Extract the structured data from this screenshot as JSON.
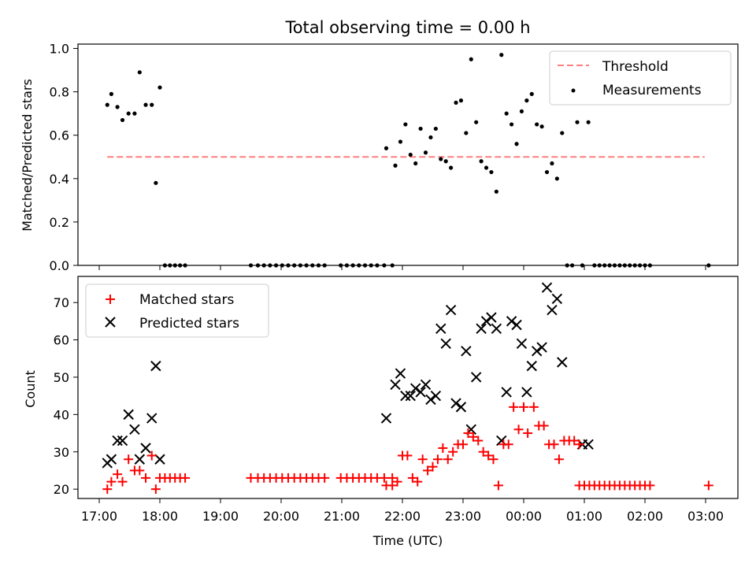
{
  "figure": {
    "title": "Total observing time = 0.00 h"
  },
  "colors": {
    "threshold": "#ff7f7f",
    "measurements": "#000000",
    "matched": "#ff0000",
    "predicted": "#000000"
  },
  "chart_data": [
    {
      "type": "scatter",
      "title": "Total observing time = 0.00 h",
      "xlabel": "",
      "ylabel": "Matched/Predicted stars",
      "ylim": [
        0,
        1.02
      ],
      "yticks": [
        "0.0",
        "0.2",
        "0.4",
        "0.6",
        "0.8",
        "1.0"
      ],
      "grid": false,
      "legend": {
        "location": "top-right",
        "entries": [
          {
            "label": "Threshold",
            "marker": "dashed-line"
          },
          {
            "label": "Measurements",
            "marker": "dot"
          }
        ]
      },
      "threshold": {
        "y": 0.5,
        "x_start": "17:08",
        "x_end": "02:59"
      },
      "series": [
        {
          "name": "Measurements",
          "points": [
            [
              "17:08",
              0.74
            ],
            [
              "17:12",
              0.79
            ],
            [
              "17:18",
              0.73
            ],
            [
              "17:23",
              0.67
            ],
            [
              "17:29",
              0.7
            ],
            [
              "17:35",
              0.7
            ],
            [
              "17:40",
              0.89
            ],
            [
              "17:46",
              0.74
            ],
            [
              "17:52",
              0.74
            ],
            [
              "17:56",
              0.38
            ],
            [
              "18:00",
              0.82
            ],
            [
              "18:05",
              0
            ],
            [
              "18:10",
              0
            ],
            [
              "18:15",
              0
            ],
            [
              "18:20",
              0
            ],
            [
              "18:25",
              0
            ],
            [
              "19:30",
              0
            ],
            [
              "19:37",
              0
            ],
            [
              "19:43",
              0
            ],
            [
              "19:49",
              0
            ],
            [
              "19:55",
              0
            ],
            [
              "20:01",
              0
            ],
            [
              "20:07",
              0
            ],
            [
              "20:13",
              0
            ],
            [
              "20:19",
              0
            ],
            [
              "20:25",
              0
            ],
            [
              "20:31",
              0
            ],
            [
              "20:37",
              0
            ],
            [
              "20:43",
              0
            ],
            [
              "20:59",
              0
            ],
            [
              "21:05",
              0
            ],
            [
              "21:11",
              0
            ],
            [
              "21:17",
              0
            ],
            [
              "21:23",
              0
            ],
            [
              "21:29",
              0
            ],
            [
              "21:35",
              0
            ],
            [
              "21:42",
              0
            ],
            [
              "21:50",
              0
            ],
            [
              "21:44",
              0.54
            ],
            [
              "21:53",
              0.46
            ],
            [
              "21:58",
              0.57
            ],
            [
              "22:03",
              0.65
            ],
            [
              "22:08",
              0.51
            ],
            [
              "22:13",
              0.47
            ],
            [
              "22:18",
              0.63
            ],
            [
              "22:23",
              0.52
            ],
            [
              "22:28",
              0.59
            ],
            [
              "22:33",
              0.63
            ],
            [
              "22:38",
              0.49
            ],
            [
              "22:43",
              0.48
            ],
            [
              "22:48",
              0.45
            ],
            [
              "22:53",
              0.75
            ],
            [
              "22:58",
              0.76
            ],
            [
              "23:03",
              0.61
            ],
            [
              "23:08",
              0.95
            ],
            [
              "23:13",
              0.66
            ],
            [
              "23:18",
              0.48
            ],
            [
              "23:23",
              0.45
            ],
            [
              "23:28",
              0.43
            ],
            [
              "23:33",
              0.34
            ],
            [
              "23:38",
              0.97
            ],
            [
              "23:43",
              0.7
            ],
            [
              "23:48",
              0.65
            ],
            [
              "23:53",
              0.56
            ],
            [
              "23:58",
              0.71
            ],
            [
              "00:03",
              0.76
            ],
            [
              "00:08",
              0.79
            ],
            [
              "00:13",
              0.65
            ],
            [
              "00:18",
              0.64
            ],
            [
              "00:23",
              0.43
            ],
            [
              "00:28",
              0.47
            ],
            [
              "00:33",
              0.4
            ],
            [
              "00:38",
              0.61
            ],
            [
              "00:43",
              0
            ],
            [
              "00:48",
              0
            ],
            [
              "00:53",
              0.66
            ],
            [
              "00:58",
              0
            ],
            [
              "01:04",
              0.66
            ],
            [
              "01:10",
              0
            ],
            [
              "01:15",
              0
            ],
            [
              "01:20",
              0
            ],
            [
              "01:25",
              0
            ],
            [
              "01:30",
              0
            ],
            [
              "01:35",
              0
            ],
            [
              "01:40",
              0
            ],
            [
              "01:45",
              0
            ],
            [
              "01:50",
              0
            ],
            [
              "01:55",
              0
            ],
            [
              "02:00",
              0
            ],
            [
              "02:05",
              0
            ],
            [
              "03:03",
              0
            ]
          ]
        }
      ]
    },
    {
      "type": "scatter",
      "xlabel": "Time (UTC)",
      "ylabel": "Count",
      "ylim": [
        17.5,
        77
      ],
      "yticks": [
        "20",
        "30",
        "40",
        "50",
        "60",
        "70"
      ],
      "xticks": [
        "17:00",
        "18:00",
        "19:00",
        "20:00",
        "21:00",
        "22:00",
        "23:00",
        "00:00",
        "01:00",
        "02:00",
        "03:00"
      ],
      "grid": false,
      "legend": {
        "location": "top-left",
        "entries": [
          {
            "label": "Matched stars",
            "marker": "plus"
          },
          {
            "label": "Predicted stars",
            "marker": "x"
          }
        ]
      },
      "series": [
        {
          "name": "Matched stars",
          "points": [
            [
              "17:08",
              20
            ],
            [
              "17:12",
              22
            ],
            [
              "17:18",
              24
            ],
            [
              "17:23",
              22
            ],
            [
              "17:29",
              28
            ],
            [
              "17:35",
              25
            ],
            [
              "17:40",
              25
            ],
            [
              "17:46",
              23
            ],
            [
              "17:52",
              29
            ],
            [
              "17:56",
              20
            ],
            [
              "18:00",
              23
            ],
            [
              "18:05",
              23
            ],
            [
              "18:10",
              23
            ],
            [
              "18:15",
              23
            ],
            [
              "18:20",
              23
            ],
            [
              "18:25",
              23
            ],
            [
              "19:30",
              23
            ],
            [
              "19:37",
              23
            ],
            [
              "19:43",
              23
            ],
            [
              "19:49",
              23
            ],
            [
              "19:55",
              23
            ],
            [
              "20:01",
              23
            ],
            [
              "20:07",
              23
            ],
            [
              "20:13",
              23
            ],
            [
              "20:19",
              23
            ],
            [
              "20:25",
              23
            ],
            [
              "20:31",
              23
            ],
            [
              "20:37",
              23
            ],
            [
              "20:43",
              23
            ],
            [
              "20:59",
              23
            ],
            [
              "21:05",
              23
            ],
            [
              "21:11",
              23
            ],
            [
              "21:17",
              23
            ],
            [
              "21:23",
              23
            ],
            [
              "21:29",
              23
            ],
            [
              "21:35",
              23
            ],
            [
              "21:42",
              23
            ],
            [
              "21:50",
              23
            ],
            [
              "21:44",
              21
            ],
            [
              "21:50",
              21
            ],
            [
              "21:55",
              22
            ],
            [
              "22:00",
              29
            ],
            [
              "22:05",
              29
            ],
            [
              "22:10",
              23
            ],
            [
              "22:15",
              22
            ],
            [
              "22:20",
              28
            ],
            [
              "22:25",
              25
            ],
            [
              "22:30",
              26
            ],
            [
              "22:35",
              28
            ],
            [
              "22:40",
              31
            ],
            [
              "22:45",
              28
            ],
            [
              "22:50",
              30
            ],
            [
              "22:55",
              32
            ],
            [
              "23:00",
              32
            ],
            [
              "23:05",
              35
            ],
            [
              "23:10",
              34
            ],
            [
              "23:15",
              33
            ],
            [
              "23:20",
              30
            ],
            [
              "23:25",
              29
            ],
            [
              "23:30",
              28
            ],
            [
              "23:35",
              21
            ],
            [
              "23:40",
              32
            ],
            [
              "23:45",
              32
            ],
            [
              "23:50",
              42
            ],
            [
              "23:55",
              36
            ],
            [
              "00:00",
              42
            ],
            [
              "00:04",
              35
            ],
            [
              "00:10",
              42
            ],
            [
              "00:15",
              37
            ],
            [
              "00:20",
              37
            ],
            [
              "00:25",
              32
            ],
            [
              "00:30",
              32
            ],
            [
              "00:35",
              28
            ],
            [
              "00:40",
              33
            ],
            [
              "00:45",
              33
            ],
            [
              "00:50",
              33
            ],
            [
              "00:55",
              32
            ],
            [
              "00:55",
              21
            ],
            [
              "01:00",
              21
            ],
            [
              "01:05",
              21
            ],
            [
              "01:10",
              21
            ],
            [
              "01:15",
              21
            ],
            [
              "01:20",
              21
            ],
            [
              "01:25",
              21
            ],
            [
              "01:30",
              21
            ],
            [
              "01:35",
              21
            ],
            [
              "01:40",
              21
            ],
            [
              "01:45",
              21
            ],
            [
              "01:50",
              21
            ],
            [
              "01:55",
              21
            ],
            [
              "02:00",
              21
            ],
            [
              "02:05",
              21
            ],
            [
              "03:03",
              21
            ]
          ]
        },
        {
          "name": "Predicted stars",
          "points": [
            [
              "17:08",
              27
            ],
            [
              "17:12",
              28
            ],
            [
              "17:18",
              33
            ],
            [
              "17:23",
              33
            ],
            [
              "17:29",
              40
            ],
            [
              "17:35",
              36
            ],
            [
              "17:40",
              28
            ],
            [
              "17:46",
              31
            ],
            [
              "17:52",
              39
            ],
            [
              "17:56",
              53
            ],
            [
              "18:00",
              28
            ],
            [
              "21:44",
              39
            ],
            [
              "21:53",
              48
            ],
            [
              "21:58",
              51
            ],
            [
              "22:03",
              45
            ],
            [
              "22:08",
              45
            ],
            [
              "22:13",
              47
            ],
            [
              "22:18",
              46
            ],
            [
              "22:23",
              48
            ],
            [
              "22:28",
              44
            ],
            [
              "22:33",
              45
            ],
            [
              "22:38",
              63
            ],
            [
              "22:43",
              59
            ],
            [
              "22:48",
              68
            ],
            [
              "22:53",
              43
            ],
            [
              "22:58",
              42
            ],
            [
              "23:03",
              57
            ],
            [
              "23:08",
              36
            ],
            [
              "23:13",
              50
            ],
            [
              "23:18",
              63
            ],
            [
              "23:23",
              65
            ],
            [
              "23:28",
              66
            ],
            [
              "23:33",
              63
            ],
            [
              "23:38",
              33
            ],
            [
              "23:43",
              46
            ],
            [
              "23:48",
              65
            ],
            [
              "23:53",
              64
            ],
            [
              "23:58",
              59
            ],
            [
              "00:03",
              46
            ],
            [
              "00:08",
              53
            ],
            [
              "00:13",
              57
            ],
            [
              "00:18",
              58
            ],
            [
              "00:23",
              74
            ],
            [
              "00:28",
              68
            ],
            [
              "00:33",
              71
            ],
            [
              "00:38",
              54
            ],
            [
              "00:58",
              32
            ],
            [
              "01:04",
              32
            ]
          ]
        }
      ]
    }
  ]
}
